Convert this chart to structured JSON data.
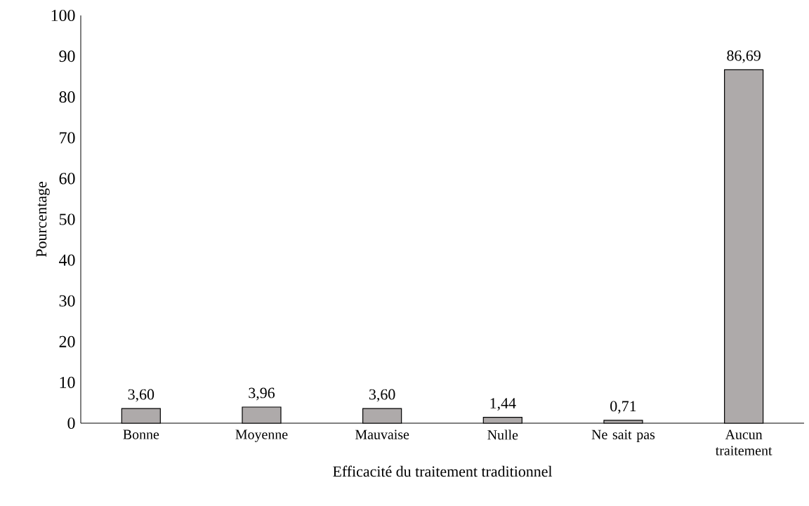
{
  "chart_data": {
    "type": "bar",
    "xlabel": "Efficacité du traitement traditionnel",
    "ylabel": "Pourcentage",
    "categories": [
      "Bonne",
      "Moyenne",
      "Mauvaise",
      "Nulle",
      "Ne sait pas",
      "Aucun traitement"
    ],
    "values": [
      3.6,
      3.96,
      3.6,
      1.44,
      0.71,
      86.69
    ],
    "value_labels": [
      "3,60",
      "3,96",
      "3,60",
      "1,44",
      "0,71",
      "86,69"
    ],
    "color": "#aeaaaa",
    "ylim": [
      0,
      100
    ],
    "yticks": [
      0,
      10,
      20,
      30,
      40,
      50,
      60,
      70,
      80,
      90,
      100
    ],
    "grid": false
  }
}
